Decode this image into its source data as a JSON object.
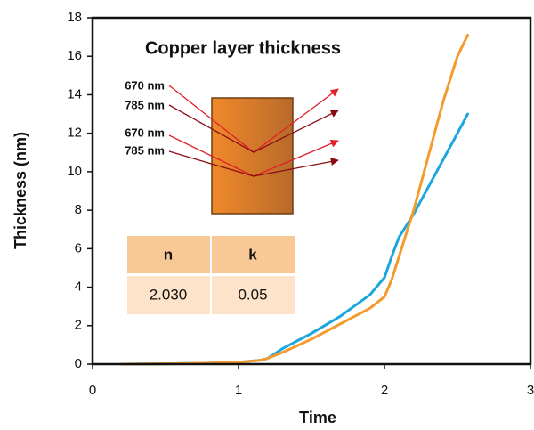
{
  "chart_data": {
    "type": "line",
    "xlabel": "Time",
    "ylabel": "Thickness (nm)",
    "x": [
      0.2,
      0.5,
      0.8,
      1.0,
      1.15,
      1.2,
      1.3,
      1.5,
      1.7,
      1.9,
      2.0,
      2.05,
      2.1,
      2.2,
      2.3,
      2.4,
      2.5,
      2.57
    ],
    "series": [
      {
        "color": "#1ba7de",
        "values": [
          0,
          0.02,
          0.05,
          0.1,
          0.2,
          0.3,
          0.8,
          1.6,
          2.5,
          3.6,
          4.5,
          5.6,
          6.6,
          7.8,
          9.2,
          10.6,
          12,
          13
        ]
      },
      {
        "color": "#f49b2f",
        "values": [
          0,
          0.02,
          0.05,
          0.1,
          0.2,
          0.3,
          0.6,
          1.3,
          2.1,
          2.9,
          3.5,
          4.4,
          5.6,
          8,
          10.8,
          13.6,
          16,
          17.1
        ]
      }
    ],
    "xlim": [
      0,
      3
    ],
    "xticks": [
      0,
      1,
      2,
      3
    ],
    "ylim": [
      0,
      18
    ],
    "yticks": [
      0,
      2,
      4,
      6,
      8,
      10,
      12,
      14,
      16,
      18
    ],
    "annotations": {
      "title": "Copper layer thickness",
      "wavelengths": [
        "670 nm",
        "785 nm",
        "670 nm",
        "785 nm"
      ],
      "table": {
        "header": [
          "n",
          "k"
        ],
        "rows": [
          [
            "2.030",
            "0.05"
          ]
        ]
      }
    }
  }
}
